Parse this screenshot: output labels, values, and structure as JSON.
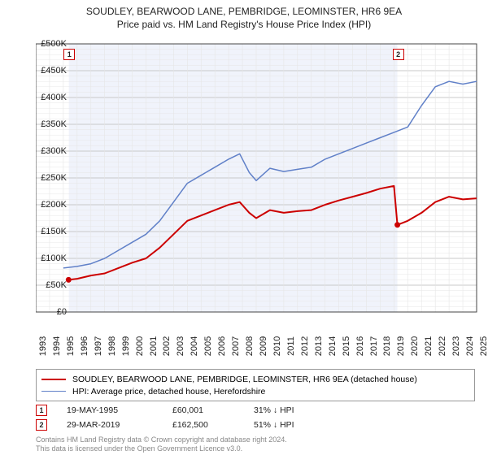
{
  "title_line1": "SOUDLEY, BEARWOOD LANE, PEMBRIDGE, LEOMINSTER, HR6 9EA",
  "title_line2": "Price paid vs. HM Land Registry's House Price Index (HPI)",
  "chart": {
    "type": "line",
    "x_start_year": 1993,
    "x_end_year": 2025,
    "y_min": 0,
    "y_max": 500000,
    "y_tick_step": 50000,
    "y_tick_prefix": "£",
    "y_tick_suffix": "K",
    "background_color": "#ffffff",
    "shaded": {
      "from_year": 1995.4,
      "to_year": 2019.25,
      "color": "#f0f3fb"
    },
    "grid_major_color": "#c8c8c8",
    "grid_minor_color": "#e6e6e6",
    "series": [
      {
        "name": "property",
        "label": "SOUDLEY, BEARWOOD LANE, PEMBRIDGE, LEOMINSTER, HR6 9EA (detached house)",
        "color": "#cc0000",
        "width": 2,
        "points": [
          [
            1995.38,
            60000
          ],
          [
            1996,
            62000
          ],
          [
            1997,
            68000
          ],
          [
            1998,
            72000
          ],
          [
            1999,
            82000
          ],
          [
            2000,
            92000
          ],
          [
            2001,
            100000
          ],
          [
            2002,
            120000
          ],
          [
            2003,
            145000
          ],
          [
            2004,
            170000
          ],
          [
            2005,
            180000
          ],
          [
            2006,
            190000
          ],
          [
            2007,
            200000
          ],
          [
            2007.8,
            205000
          ],
          [
            2008.5,
            185000
          ],
          [
            2009,
            175000
          ],
          [
            2010,
            190000
          ],
          [
            2011,
            185000
          ],
          [
            2012,
            188000
          ],
          [
            2013,
            190000
          ],
          [
            2014,
            200000
          ],
          [
            2015,
            208000
          ],
          [
            2016,
            215000
          ],
          [
            2017,
            222000
          ],
          [
            2018,
            230000
          ],
          [
            2019,
            235000
          ],
          [
            2019.25,
            162500
          ],
          [
            2020,
            170000
          ],
          [
            2021,
            185000
          ],
          [
            2022,
            205000
          ],
          [
            2023,
            215000
          ],
          [
            2024,
            210000
          ],
          [
            2025,
            212000
          ]
        ]
      },
      {
        "name": "hpi",
        "label": "HPI: Average price, detached house, Herefordshire",
        "color": "#6080c8",
        "width": 1.5,
        "points": [
          [
            1995,
            82000
          ],
          [
            1996,
            85000
          ],
          [
            1997,
            90000
          ],
          [
            1998,
            100000
          ],
          [
            1999,
            115000
          ],
          [
            2000,
            130000
          ],
          [
            2001,
            145000
          ],
          [
            2002,
            170000
          ],
          [
            2003,
            205000
          ],
          [
            2004,
            240000
          ],
          [
            2005,
            255000
          ],
          [
            2006,
            270000
          ],
          [
            2007,
            285000
          ],
          [
            2007.8,
            295000
          ],
          [
            2008.5,
            260000
          ],
          [
            2009,
            245000
          ],
          [
            2010,
            268000
          ],
          [
            2011,
            262000
          ],
          [
            2012,
            266000
          ],
          [
            2013,
            270000
          ],
          [
            2014,
            285000
          ],
          [
            2015,
            295000
          ],
          [
            2016,
            305000
          ],
          [
            2017,
            315000
          ],
          [
            2018,
            325000
          ],
          [
            2019,
            335000
          ],
          [
            2020,
            345000
          ],
          [
            2021,
            385000
          ],
          [
            2022,
            420000
          ],
          [
            2023,
            430000
          ],
          [
            2024,
            425000
          ],
          [
            2025,
            430000
          ]
        ]
      }
    ],
    "markers": [
      {
        "num": "1",
        "year": 1995.38,
        "value": 60001
      },
      {
        "num": "2",
        "year": 2019.25,
        "value": 162500
      }
    ]
  },
  "legend": {
    "rows": [
      {
        "color": "#cc0000",
        "width": 2,
        "label": "SOUDLEY, BEARWOOD LANE, PEMBRIDGE, LEOMINSTER, HR6 9EA (detached house)"
      },
      {
        "color": "#6080c8",
        "width": 1.5,
        "label": "HPI: Average price, detached house, Herefordshire"
      }
    ]
  },
  "transactions": [
    {
      "num": "1",
      "date": "19-MAY-1995",
      "price": "£60,001",
      "pct": "31%",
      "arrow": "↓",
      "suffix": "HPI"
    },
    {
      "num": "2",
      "date": "29-MAR-2019",
      "price": "£162,500",
      "pct": "51%",
      "arrow": "↓",
      "suffix": "HPI"
    }
  ],
  "footer_line1": "Contains HM Land Registry data © Crown copyright and database right 2024.",
  "footer_line2": "This data is licensed under the Open Government Licence v3.0."
}
